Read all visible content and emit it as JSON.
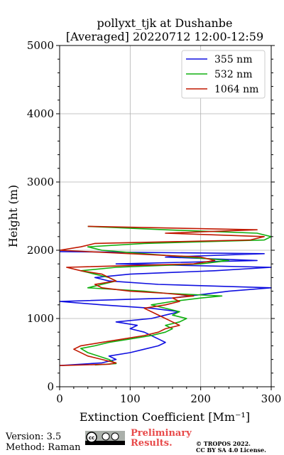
{
  "chart_data": {
    "type": "line",
    "title_line1": "pollyxt_tjk at Dushanbe",
    "title_line2": "[Averaged] 20220712 12:00-12:59",
    "xlabel": "Extinction Coefficient [Mm⁻¹]",
    "ylabel": "Height (m)",
    "xlim": [
      0,
      300
    ],
    "ylim": [
      0,
      5000
    ],
    "xticks": [
      "0",
      "100",
      "200",
      "300"
    ],
    "yticks": [
      "0",
      "1000",
      "2000",
      "3000",
      "4000",
      "5000"
    ],
    "grid": true,
    "legend_position": "top-right",
    "series": [
      {
        "name": "355 nm",
        "color": "#1010e0",
        "points": [
          [
            0,
            310
          ],
          [
            60,
            350
          ],
          [
            80,
            400
          ],
          [
            70,
            450
          ],
          [
            100,
            500
          ],
          [
            120,
            550
          ],
          [
            140,
            600
          ],
          [
            150,
            650
          ],
          [
            140,
            700
          ],
          [
            130,
            750
          ],
          [
            120,
            800
          ],
          [
            100,
            850
          ],
          [
            110,
            900
          ],
          [
            80,
            950
          ],
          [
            130,
            1000
          ],
          [
            150,
            1050
          ],
          [
            170,
            1100
          ],
          [
            130,
            1150
          ],
          [
            60,
            1200
          ],
          [
            0,
            1250
          ],
          [
            160,
            1300
          ],
          [
            200,
            1350
          ],
          [
            240,
            1400
          ],
          [
            300,
            1450
          ],
          [
            140,
            1500
          ],
          [
            70,
            1550
          ],
          [
            50,
            1600
          ],
          [
            100,
            1650
          ],
          [
            220,
            1700
          ],
          [
            300,
            1750
          ],
          [
            80,
            1800
          ],
          [
            280,
            1850
          ],
          [
            150,
            1900
          ],
          [
            290,
            1950
          ],
          [
            0,
            1980
          ]
        ]
      },
      {
        "name": "532 nm",
        "color": "#10b010",
        "points": [
          [
            50,
            320
          ],
          [
            80,
            340
          ],
          [
            70,
            400
          ],
          [
            40,
            500
          ],
          [
            30,
            560
          ],
          [
            50,
            600
          ],
          [
            70,
            650
          ],
          [
            100,
            700
          ],
          [
            130,
            750
          ],
          [
            150,
            800
          ],
          [
            160,
            850
          ],
          [
            150,
            900
          ],
          [
            170,
            950
          ],
          [
            180,
            1000
          ],
          [
            160,
            1050
          ],
          [
            170,
            1100
          ],
          [
            150,
            1150
          ],
          [
            130,
            1200
          ],
          [
            160,
            1250
          ],
          [
            200,
            1300
          ],
          [
            230,
            1330
          ],
          [
            150,
            1370
          ],
          [
            120,
            1400
          ],
          [
            40,
            1450
          ],
          [
            60,
            1500
          ],
          [
            80,
            1550
          ],
          [
            70,
            1600
          ],
          [
            30,
            1700
          ],
          [
            80,
            1750
          ],
          [
            200,
            1800
          ],
          [
            240,
            1850
          ],
          [
            180,
            1900
          ],
          [
            60,
            2000
          ],
          [
            40,
            2050
          ],
          [
            120,
            2100
          ],
          [
            290,
            2150
          ],
          [
            300,
            2200
          ],
          [
            280,
            2250
          ],
          [
            150,
            2300
          ],
          [
            40,
            2350
          ]
        ]
      },
      {
        "name": "1064 nm",
        "color": "#c01800",
        "points": [
          [
            0,
            310
          ],
          [
            70,
            330
          ],
          [
            80,
            350
          ],
          [
            60,
            400
          ],
          [
            40,
            450
          ],
          [
            20,
            550
          ],
          [
            30,
            600
          ],
          [
            60,
            650
          ],
          [
            90,
            700
          ],
          [
            120,
            750
          ],
          [
            140,
            800
          ],
          [
            150,
            850
          ],
          [
            170,
            900
          ],
          [
            160,
            950
          ],
          [
            150,
            1000
          ],
          [
            130,
            1100
          ],
          [
            120,
            1150
          ],
          [
            150,
            1200
          ],
          [
            170,
            1250
          ],
          [
            160,
            1300
          ],
          [
            190,
            1330
          ],
          [
            150,
            1370
          ],
          [
            100,
            1400
          ],
          [
            60,
            1450
          ],
          [
            50,
            1500
          ],
          [
            80,
            1550
          ],
          [
            60,
            1650
          ],
          [
            30,
            1700
          ],
          [
            10,
            1750
          ],
          [
            190,
            1800
          ],
          [
            220,
            1850
          ],
          [
            200,
            1900
          ],
          [
            0,
            2000
          ],
          [
            30,
            2050
          ],
          [
            50,
            2100
          ],
          [
            270,
            2150
          ],
          [
            290,
            2200
          ],
          [
            150,
            2250
          ],
          [
            280,
            2300
          ],
          [
            40,
            2350
          ]
        ]
      }
    ]
  },
  "footer": {
    "version": "Version: 3.5",
    "method": "Method: Raman",
    "preliminary_line1": "Preliminary",
    "preliminary_line2": "Results.",
    "copyright_line1": "© TROPOS 2022.",
    "copyright_line2": "CC BY SA 4.0 License.",
    "badge_text": "cc by sa"
  }
}
